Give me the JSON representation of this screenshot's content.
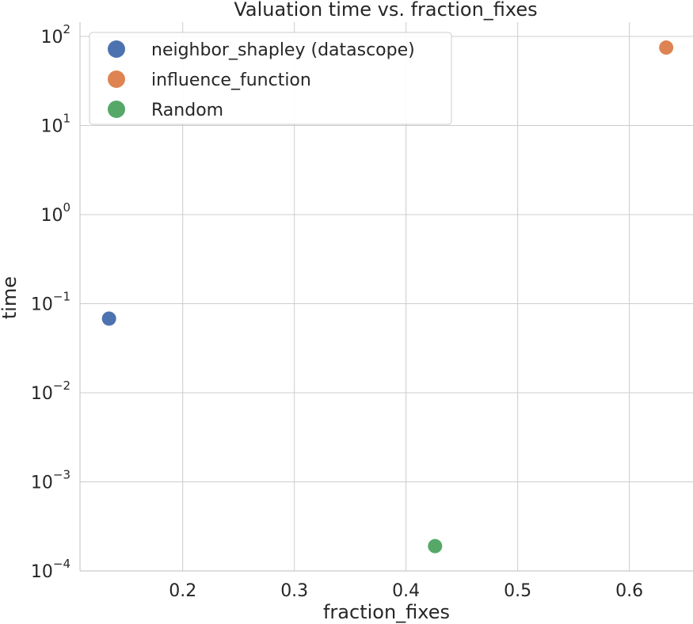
{
  "chart_data": {
    "type": "scatter",
    "title": "Valuation time vs. fraction_fixes",
    "xlabel": "fraction_fixes",
    "ylabel": "time",
    "y_scale": "log",
    "xlim": [
      0.108,
      0.657
    ],
    "ylim_log10": [
      -4,
      2.16
    ],
    "x_ticks": [
      0.2,
      0.3,
      0.4,
      0.5,
      0.6
    ],
    "x_tick_labels": [
      "0.2",
      "0.3",
      "0.4",
      "0.5",
      "0.6"
    ],
    "y_ticks_log10": [
      -4,
      -3,
      -2,
      -1,
      0,
      1,
      2
    ],
    "y_tick_labels": [
      {
        "base": "10",
        "exp": "−4"
      },
      {
        "base": "10",
        "exp": "−3"
      },
      {
        "base": "10",
        "exp": "−2"
      },
      {
        "base": "10",
        "exp": "−1"
      },
      {
        "base": "10",
        "exp": "0"
      },
      {
        "base": "10",
        "exp": "1"
      },
      {
        "base": "10",
        "exp": "2"
      }
    ],
    "grid": true,
    "legend_position": "top-left",
    "series": [
      {
        "name": "neighbor_shapley (datascope)",
        "color": "#4c72b0",
        "x": [
          0.134
        ],
        "y": [
          0.068
        ]
      },
      {
        "name": "influence_function",
        "color": "#dd8452",
        "x": [
          0.633
        ],
        "y": [
          75
        ]
      },
      {
        "name": "Random",
        "color": "#55a868",
        "x": [
          0.426
        ],
        "y": [
          0.00019
        ]
      }
    ]
  }
}
